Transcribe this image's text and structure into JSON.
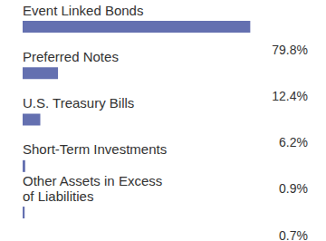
{
  "chart_data": {
    "type": "bar",
    "orientation": "horizontal",
    "categories": [
      "Event Linked Bonds",
      "Preferred Notes",
      "U.S. Treasury Bills",
      "Short-Term Investments",
      "Other Assets in Excess\nof Liabilities"
    ],
    "values": [
      79.8,
      12.4,
      6.2,
      0.9,
      0.7
    ],
    "value_labels": [
      "79.8%",
      "12.4%",
      "6.2%",
      "0.9%",
      "0.7%"
    ],
    "color": "#6470b0",
    "xlim": [
      0,
      100
    ],
    "grid": false,
    "data_labels": true
  }
}
